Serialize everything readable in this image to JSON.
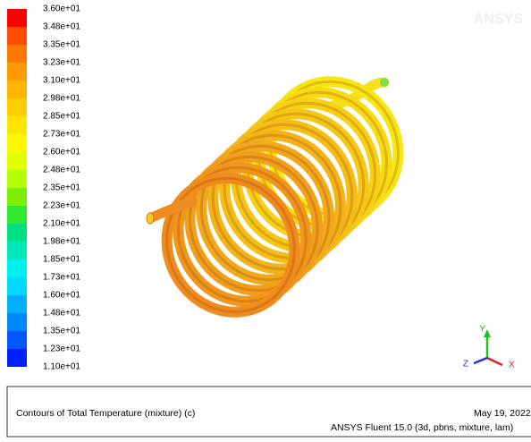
{
  "legend": {
    "labels": [
      "3.60e+01",
      "3.48e+01",
      "3.35e+01",
      "3.23e+01",
      "3.10e+01",
      "2.98e+01",
      "2.85e+01",
      "2.73e+01",
      "2.60e+01",
      "2.48e+01",
      "2.35e+01",
      "2.23e+01",
      "2.10e+01",
      "1.98e+01",
      "1.85e+01",
      "1.73e+01",
      "1.60e+01",
      "1.48e+01",
      "1.35e+01",
      "1.23e+01",
      "1.10e+01"
    ],
    "colors": [
      "#ff0000",
      "#ff4a00",
      "#ff7800",
      "#ff9a00",
      "#ffb400",
      "#ffcc00",
      "#ffe400",
      "#fff600",
      "#e2ff00",
      "#b4ff00",
      "#7cf000",
      "#30e830",
      "#00e080",
      "#00e8b8",
      "#00f0f0",
      "#00d8ff",
      "#00b0ff",
      "#0088ff",
      "#0058ff",
      "#0020ff"
    ]
  },
  "watermark": "ANSYS",
  "axes": {
    "x": "X",
    "y": "Y",
    "z": "Z"
  },
  "info": {
    "title": "Contours of Total Temperature (mixture)  (c)",
    "date": "May 19, 2022",
    "version": "ANSYS Fluent 15.0 (3d, pbns, mixture, lam)"
  }
}
